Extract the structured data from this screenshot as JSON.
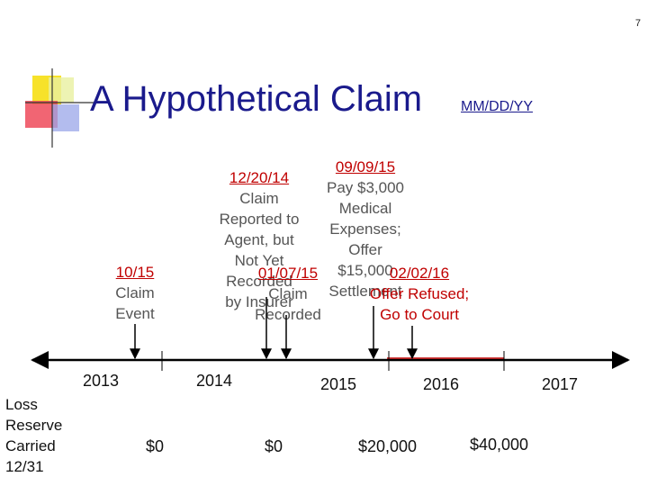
{
  "slide_number": "7",
  "title": "A Hypothetical Claim",
  "subtitle": "MM/DD/YY",
  "events": {
    "claim_event": {
      "date": "10/15",
      "lines": [
        "Claim",
        "Event"
      ]
    },
    "reported": {
      "date": "12/20/14",
      "lines": [
        "Claim",
        "Reported to",
        "Agent, but",
        "Not Yet",
        "Recorded",
        "by Insurer"
      ]
    },
    "recorded": {
      "date": "01/07/15",
      "lines": [
        "Claim",
        "Recorded"
      ]
    },
    "offer": {
      "date": "09/09/15",
      "lines": [
        "Pay $3,000",
        "Medical",
        "Expenses;",
        "Offer",
        "$15,000",
        "Settlement"
      ]
    },
    "court": {
      "date": "02/02/16",
      "lines": [
        "Offer Refused;",
        "Go to Court"
      ]
    }
  },
  "years": [
    "2013",
    "2014",
    "2015",
    "2016",
    "2017"
  ],
  "reserve_label": [
    "Loss",
    "Reserve",
    "Carried",
    "12/31"
  ],
  "reserves": [
    "$0",
    "$0",
    "$20,000",
    "$40,000"
  ],
  "colors": {
    "title": "#1a1a8c",
    "event_date": "#c00000",
    "event_text": "#555555",
    "timeline": "#000000"
  }
}
